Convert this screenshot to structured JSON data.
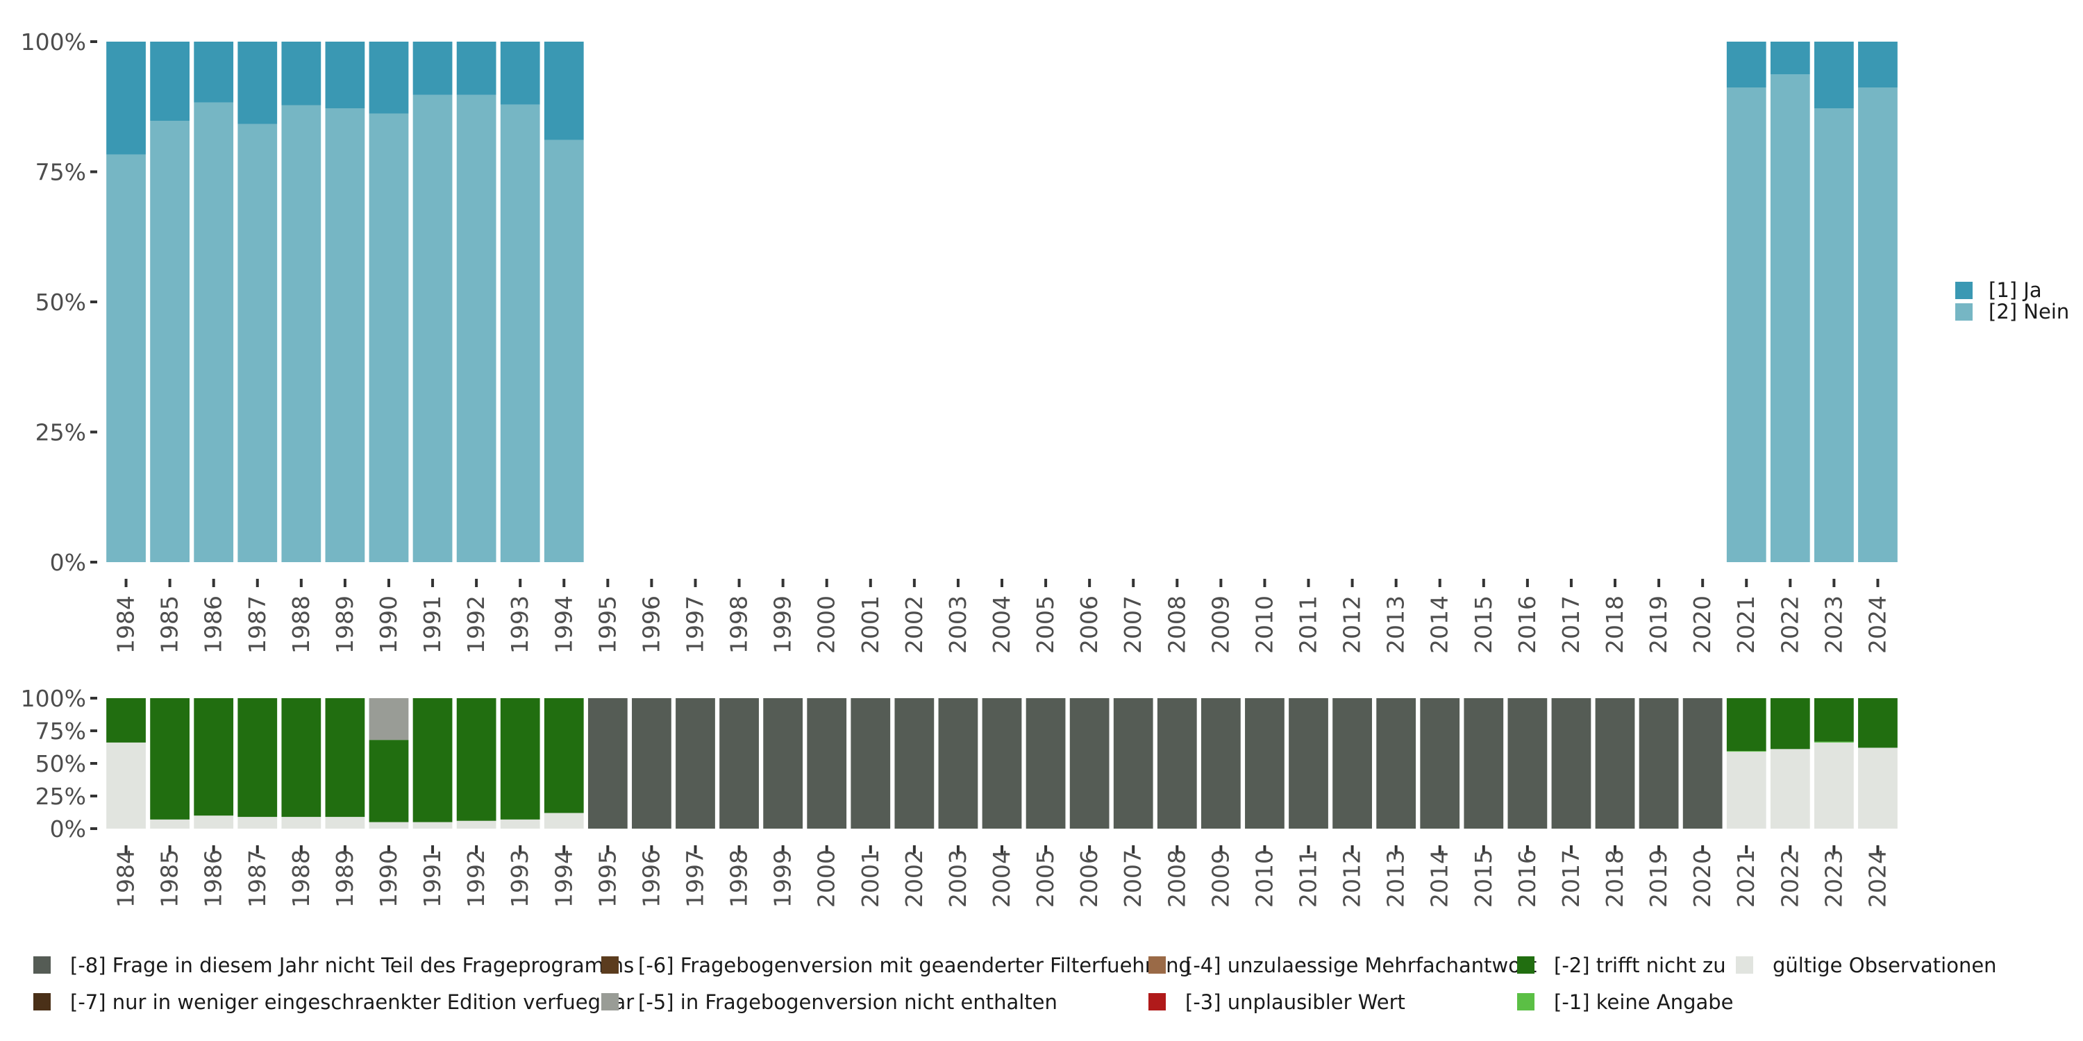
{
  "colors": {
    "ja": "#3a98b3",
    "nein": "#76b6c4",
    "m8": "#555c55",
    "m7": "#4a3018",
    "m6": "#5b3c1e",
    "m5": "#999c96",
    "m4": "#9a6a47",
    "m3": "#b01a1a",
    "m2": "#216e10",
    "m1": "#5bbf45",
    "valid": "#e1e4df"
  },
  "chart_data": [
    {
      "type": "bar",
      "stacked": true,
      "normalized": true,
      "title": "",
      "xlabel": "",
      "ylabel": "",
      "ylim": [
        0,
        100
      ],
      "yticks": [
        "0%",
        "25%",
        "50%",
        "75%",
        "100%"
      ],
      "categories": [
        "1984",
        "1985",
        "1986",
        "1987",
        "1988",
        "1989",
        "1990",
        "1991",
        "1992",
        "1993",
        "1994",
        "1995",
        "1996",
        "1997",
        "1998",
        "1999",
        "2000",
        "2001",
        "2002",
        "2003",
        "2004",
        "2005",
        "2006",
        "2007",
        "2008",
        "2009",
        "2010",
        "2011",
        "2012",
        "2013",
        "2014",
        "2015",
        "2016",
        "2017",
        "2018",
        "2019",
        "2020",
        "2021",
        "2022",
        "2023",
        "2024"
      ],
      "series": [
        {
          "name": "[2] Nein",
          "color_key": "nein",
          "values": [
            78.3,
            84.8,
            88.3,
            84.2,
            87.8,
            87.2,
            86.2,
            89.8,
            89.8,
            87.9,
            81.1,
            null,
            null,
            null,
            null,
            null,
            null,
            null,
            null,
            null,
            null,
            null,
            null,
            null,
            null,
            null,
            null,
            null,
            null,
            null,
            null,
            null,
            null,
            null,
            null,
            null,
            null,
            91.2,
            93.7,
            87.2,
            91.2
          ]
        },
        {
          "name": "[1] Ja",
          "color_key": "ja",
          "values": [
            21.7,
            15.2,
            11.7,
            15.8,
            12.2,
            12.8,
            13.8,
            10.2,
            10.2,
            12.1,
            18.9,
            null,
            null,
            null,
            null,
            null,
            null,
            null,
            null,
            null,
            null,
            null,
            null,
            null,
            null,
            null,
            null,
            null,
            null,
            null,
            null,
            null,
            null,
            null,
            null,
            null,
            null,
            8.8,
            6.3,
            12.8,
            8.8
          ]
        }
      ],
      "legend": {
        "position": "right",
        "entries": [
          {
            "label": "[1] Ja",
            "color_key": "ja"
          },
          {
            "label": "[2] Nein",
            "color_key": "nein"
          }
        ]
      }
    },
    {
      "type": "bar",
      "stacked": true,
      "normalized": true,
      "title": "",
      "xlabel": "",
      "ylabel": "",
      "ylim": [
        0,
        100
      ],
      "yticks": [
        "0%",
        "25%",
        "50%",
        "75%",
        "100%"
      ],
      "categories": [
        "1984",
        "1985",
        "1986",
        "1987",
        "1988",
        "1989",
        "1990",
        "1991",
        "1992",
        "1993",
        "1994",
        "1995",
        "1996",
        "1997",
        "1998",
        "1999",
        "2000",
        "2001",
        "2002",
        "2003",
        "2004",
        "2005",
        "2006",
        "2007",
        "2008",
        "2009",
        "2010",
        "2011",
        "2012",
        "2013",
        "2014",
        "2015",
        "2016",
        "2017",
        "2018",
        "2019",
        "2020",
        "2021",
        "2022",
        "2023",
        "2024"
      ],
      "series": [
        {
          "name": "gültige Observationen",
          "color_key": "valid",
          "values": [
            66,
            7,
            10,
            9,
            9,
            9,
            5,
            5,
            6,
            7,
            12,
            0,
            0,
            0,
            0,
            0,
            0,
            0,
            0,
            0,
            0,
            0,
            0,
            0,
            0,
            0,
            0,
            0,
            0,
            0,
            0,
            0,
            0,
            0,
            0,
            0,
            0,
            59,
            61,
            66,
            62
          ]
        },
        {
          "name": "[-1] keine Angabe",
          "color_key": "m1",
          "values": [
            0,
            0,
            0,
            0,
            0,
            0,
            0,
            0,
            0,
            0,
            0,
            0,
            0,
            0,
            0,
            0,
            0,
            0,
            0,
            0,
            0,
            0,
            0,
            0,
            0,
            0,
            0,
            0,
            0,
            0,
            0,
            0,
            0,
            0,
            0,
            0,
            0,
            0.5,
            0,
            0.7,
            0
          ]
        },
        {
          "name": "[-2] trifft nicht zu",
          "color_key": "m2",
          "values": [
            34,
            93,
            90,
            91,
            91,
            91,
            63,
            95,
            94,
            93,
            88,
            0,
            0,
            0,
            0,
            0,
            0,
            0,
            0,
            0,
            0,
            0,
            0,
            0,
            0,
            0,
            0,
            0,
            0,
            0,
            0,
            0,
            0,
            0,
            0,
            0,
            0,
            40.5,
            39,
            33.3,
            38
          ]
        },
        {
          "name": "[-5] in Fragebogenversion nicht enthalten",
          "color_key": "m5",
          "values": [
            0,
            0,
            0,
            0,
            0,
            0,
            32,
            0,
            0,
            0,
            0,
            0,
            0,
            0,
            0,
            0,
            0,
            0,
            0,
            0,
            0,
            0,
            0,
            0,
            0,
            0,
            0,
            0,
            0,
            0,
            0,
            0,
            0,
            0,
            0,
            0,
            0,
            0,
            0,
            0,
            0
          ]
        },
        {
          "name": "[-8] Frage in diesem Jahr nicht Teil des Frageprogramms",
          "color_key": "m8",
          "values": [
            0,
            0,
            0,
            0,
            0,
            0,
            0,
            0,
            0,
            0,
            0,
            100,
            100,
            100,
            100,
            100,
            100,
            100,
            100,
            100,
            100,
            100,
            100,
            100,
            100,
            100,
            100,
            100,
            100,
            100,
            100,
            100,
            100,
            100,
            100,
            100,
            100,
            0,
            0,
            0,
            0
          ]
        }
      ],
      "legend": {
        "position": "bottom",
        "entries": [
          {
            "label": "[-8] Frage in diesem Jahr nicht Teil des Frageprogramms",
            "color_key": "m8"
          },
          {
            "label": "[-7] nur in weniger eingeschraenkter Edition verfuegbar",
            "color_key": "m7"
          },
          {
            "label": "[-6] Fragebogenversion mit geaenderter Filterfuehrung",
            "color_key": "m6"
          },
          {
            "label": "[-5] in Fragebogenversion nicht enthalten",
            "color_key": "m5"
          },
          {
            "label": "[-4] unzulaessige Mehrfachantwort",
            "color_key": "m4"
          },
          {
            "label": "[-3] unplausibler Wert",
            "color_key": "m3"
          },
          {
            "label": "[-2] trifft nicht zu",
            "color_key": "m2"
          },
          {
            "label": "[-1] keine Angabe",
            "color_key": "m1"
          },
          {
            "label": "gültige Observationen",
            "color_key": "valid"
          }
        ]
      }
    }
  ]
}
